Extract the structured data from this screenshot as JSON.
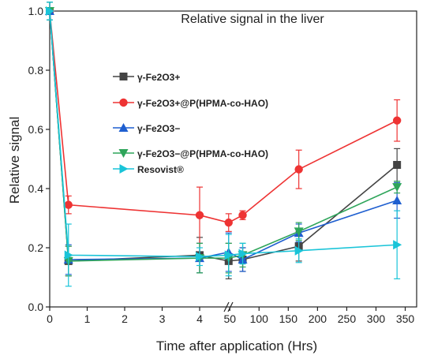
{
  "chart_data": {
    "type": "line",
    "title": "Relative signal in the liver",
    "xlabel": "Time after application (Hrs)",
    "ylabel": "Relative signal",
    "ylim": [
      0,
      1
    ],
    "yticks": [
      "0.0",
      "0.2",
      "0.4",
      "0.6",
      "0.8",
      "1.0"
    ],
    "x_axis_break": {
      "left_range": [
        0,
        4.5
      ],
      "right_range": [
        20,
        350
      ],
      "left_ticks": [
        "0",
        "1",
        "2",
        "3",
        "4"
      ],
      "right_ticks": [
        "50",
        "100",
        "150",
        "200",
        "250",
        "300",
        "350"
      ]
    },
    "legend_placement": "center-left",
    "series": [
      {
        "name": "γ-Fe2O3+",
        "color": "#444444",
        "marker": "square",
        "points": [
          {
            "x": 0,
            "y": 1.0,
            "err": 0.03
          },
          {
            "x": 0.5,
            "y": 0.155,
            "err": 0.05
          },
          {
            "x": 4,
            "y": 0.175,
            "err": 0.06
          },
          {
            "x": 48,
            "y": 0.155,
            "err": 0.06
          },
          {
            "x": 72,
            "y": 0.16,
            "err": 0.04
          },
          {
            "x": 168,
            "y": 0.205,
            "err": 0.05
          },
          {
            "x": 336,
            "y": 0.48,
            "err": 0.055
          }
        ]
      },
      {
        "name": "γ-Fe2O3+@P(HPMA-co-HAO)",
        "color": "#ee3333",
        "marker": "circle",
        "points": [
          {
            "x": 0,
            "y": 1.0,
            "err": 0.03
          },
          {
            "x": 0.5,
            "y": 0.345,
            "err": 0.03
          },
          {
            "x": 4,
            "y": 0.31,
            "err": 0.095
          },
          {
            "x": 48,
            "y": 0.285,
            "err": 0.03
          },
          {
            "x": 72,
            "y": 0.31,
            "err": 0.015
          },
          {
            "x": 168,
            "y": 0.465,
            "err": 0.065
          },
          {
            "x": 336,
            "y": 0.63,
            "err": 0.07
          }
        ]
      },
      {
        "name": "γ-Fe2O3−",
        "color": "#1f5fd0",
        "marker": "triangle-up",
        "points": [
          {
            "x": 0,
            "y": 1.0,
            "err": 0.03
          },
          {
            "x": 0.5,
            "y": 0.16,
            "err": 0.05
          },
          {
            "x": 4,
            "y": 0.165,
            "err": 0.05
          },
          {
            "x": 48,
            "y": 0.185,
            "err": 0.065
          },
          {
            "x": 72,
            "y": 0.16,
            "err": 0.04
          },
          {
            "x": 168,
            "y": 0.25,
            "err": 0.03
          },
          {
            "x": 336,
            "y": 0.36,
            "err": 0.06
          }
        ]
      },
      {
        "name": "γ-Fe2O3−@P(HPMA-co-HAO)",
        "color": "#2ea55a",
        "marker": "triangle-down",
        "points": [
          {
            "x": 0,
            "y": 1.0,
            "err": 0.03
          },
          {
            "x": 0.5,
            "y": 0.155,
            "err": 0.05
          },
          {
            "x": 4,
            "y": 0.165,
            "err": 0.05
          },
          {
            "x": 48,
            "y": 0.165,
            "err": 0.05
          },
          {
            "x": 72,
            "y": 0.175,
            "err": 0.04
          },
          {
            "x": 168,
            "y": 0.255,
            "err": 0.03
          },
          {
            "x": 336,
            "y": 0.405,
            "err": 0.02
          }
        ]
      },
      {
        "name": "Resovist®",
        "color": "#19c4d8",
        "marker": "triangle-right",
        "points": [
          {
            "x": 0,
            "y": 1.0,
            "err": 0.03
          },
          {
            "x": 0.5,
            "y": 0.175,
            "err": 0.105
          },
          {
            "x": 4,
            "y": 0.17,
            "err": 0.03
          },
          {
            "x": 48,
            "y": 0.175,
            "err": 0.07
          },
          {
            "x": 72,
            "y": 0.18,
            "err": 0.035
          },
          {
            "x": 168,
            "y": 0.19,
            "err": 0.04
          },
          {
            "x": 336,
            "y": 0.21,
            "err": 0.115
          }
        ]
      }
    ]
  }
}
